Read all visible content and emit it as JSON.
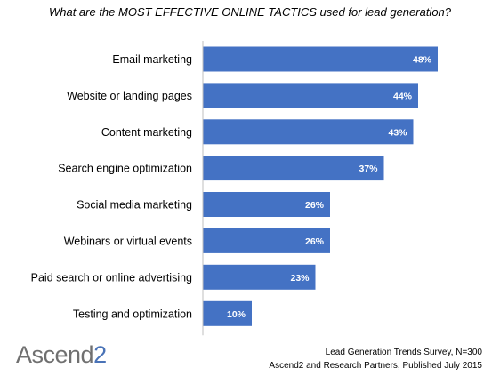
{
  "chart_data": {
    "type": "bar",
    "orientation": "horizontal",
    "title": "What are the MOST EFFECTIVE ONLINE TACTICS used for lead generation?",
    "categories": [
      "Email marketing",
      "Website or landing pages",
      "Content marketing",
      "Search engine optimization",
      "Social media marketing",
      "Webinars or virtual events",
      "Paid search or online advertising",
      "Testing and optimization"
    ],
    "values": [
      48,
      44,
      43,
      37,
      26,
      26,
      23,
      10
    ],
    "value_labels": [
      "48%",
      "44%",
      "43%",
      "37%",
      "26%",
      "26%",
      "23%",
      "10%"
    ],
    "unit": "%",
    "xlim": [
      0,
      60
    ],
    "bar_color": "#4472c4",
    "axis_color": "#bfbfbf",
    "grid": false,
    "legend": "none"
  },
  "footer": {
    "source_line1": "Lead Generation Trends Survey, N=300",
    "source_line2": "Ascend2 and Research Partners, Published July 2015"
  },
  "logo": {
    "text": "Ascend",
    "suffix": "2",
    "color": "#707070",
    "accent": "#4a73b7"
  }
}
